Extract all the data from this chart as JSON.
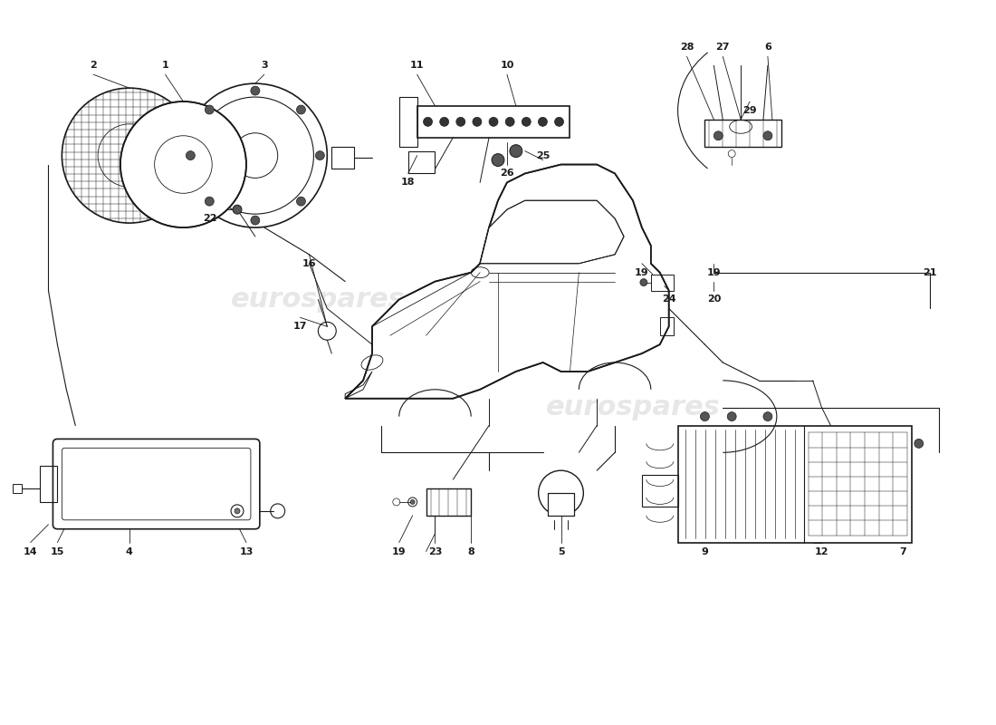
{
  "bg_color": "#ffffff",
  "line_color": "#1a1a1a",
  "watermark_color": "#d0d0d0",
  "fig_width": 11.0,
  "fig_height": 8.0,
  "dpi": 100
}
